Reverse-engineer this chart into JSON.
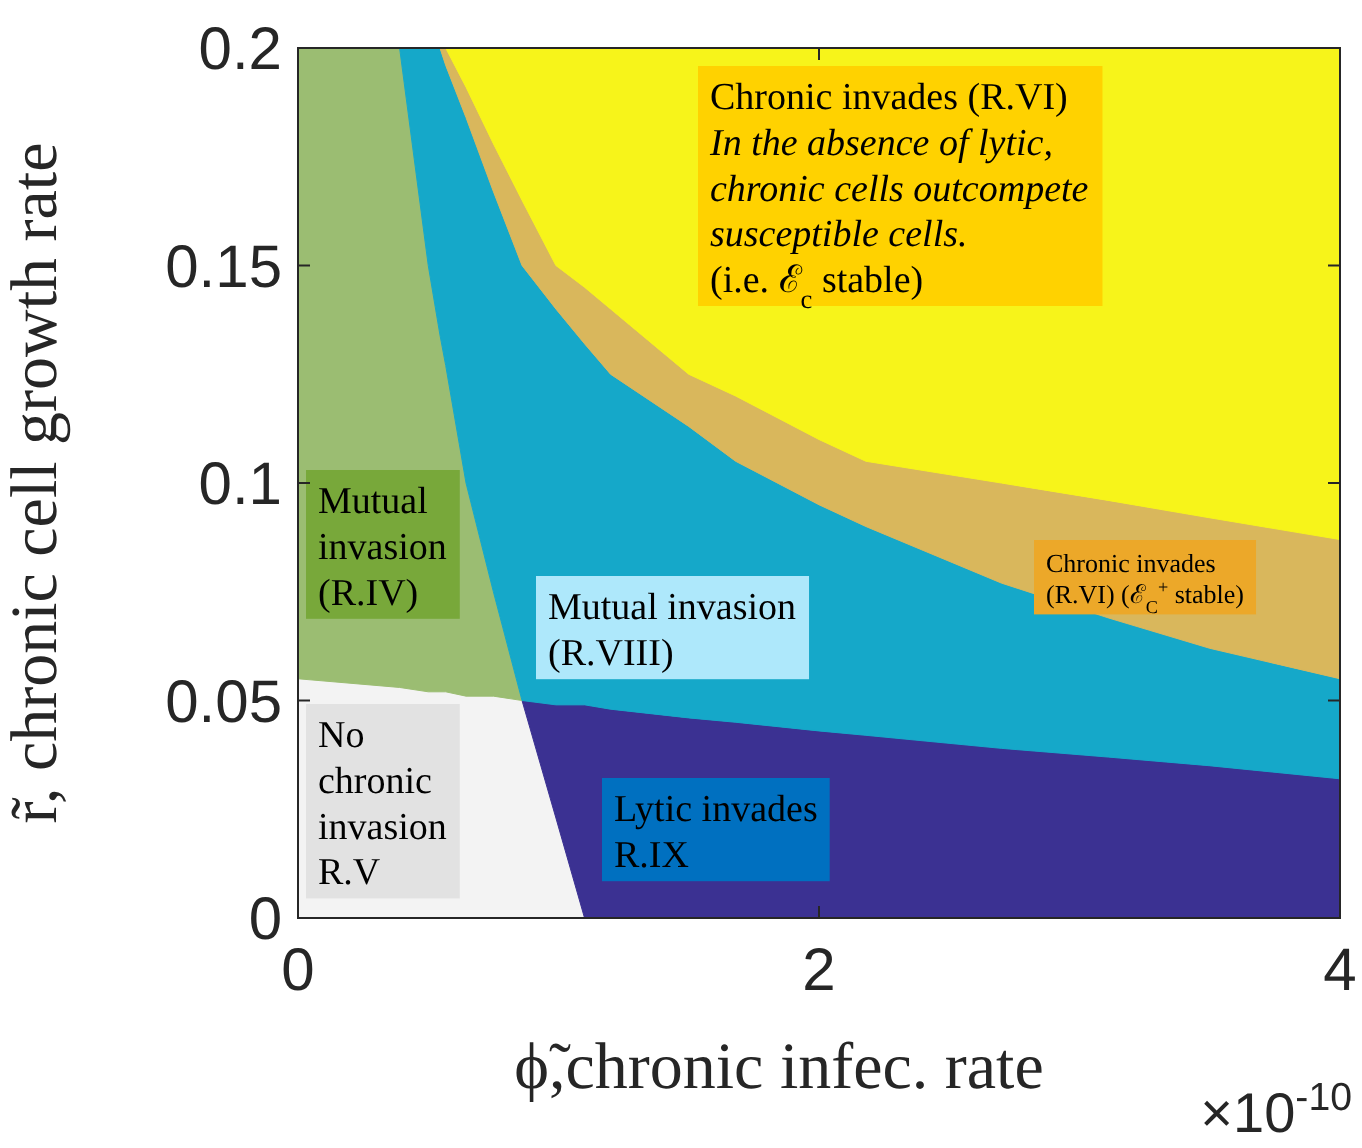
{
  "chart_data": {
    "type": "area",
    "stacked": true,
    "xlabel": "ϕ̃,chronic infec. rate",
    "ylabel": "r̃, chronic cell growth rate",
    "x": [
      0,
      0.39,
      0.5,
      0.545,
      0.567,
      0.645,
      0.75,
      0.86,
      0.99,
      1.1,
      1.2,
      1.5,
      1.68,
      2,
      2.18,
      2.7,
      3.11,
      3.5,
      4
    ],
    "xlim": [
      0,
      4
    ],
    "xticks": [
      0,
      2,
      4
    ],
    "ylim": [
      0,
      0.2
    ],
    "yticks": [
      0,
      0.05,
      0.1,
      0.15,
      0.2
    ],
    "grid": false,
    "series": [
      {
        "color": "#f3f3f3",
        "values": [
          0.055,
          0.053,
          0.052,
          0.052,
          0.052,
          0.051,
          0.051,
          0.05,
          0.023,
          0,
          null,
          null,
          null,
          null,
          null,
          null,
          null,
          null,
          null
        ]
      },
      {
        "color": "#3b3192",
        "values": [
          null,
          null,
          null,
          null,
          null,
          null,
          null,
          0,
          0.026,
          0.049,
          0.048,
          0.046,
          0.045,
          0.043,
          0.042,
          0.039,
          0.037,
          0.035,
          0.032
        ]
      },
      {
        "color": "#9bbd72",
        "values": [
          0.145,
          0.147,
          0.098,
          0.082,
          0.075,
          0.049,
          0.024,
          0,
          null,
          null,
          null,
          null,
          null,
          null,
          null,
          null,
          null,
          null,
          null
        ]
      },
      {
        "color": "#15a8c9",
        "values": [
          null,
          0,
          0.05,
          0.066,
          0.069,
          0.084,
          0.092,
          0.1,
          0.091,
          0.083,
          0.077,
          0.067,
          0.06,
          0.052,
          0.048,
          0.038,
          0.032,
          0.027,
          0.023
        ]
      },
      {
        "color": "#d9b75c",
        "values": [
          null,
          null,
          null,
          0,
          0.004,
          0.007,
          0.011,
          0.015,
          0.01,
          0.013,
          0.015,
          0.012,
          0.015,
          0.015,
          0.015,
          0.023,
          0.027,
          0.03,
          0.032
        ]
      },
      {
        "color": "#f7f41a",
        "values": [
          null,
          null,
          null,
          null,
          0,
          0.009,
          0.022,
          0.035,
          0.05,
          0.055,
          0.06,
          0.075,
          0.08,
          0.09,
          0.095,
          0.1,
          0.104,
          0.108,
          0.113
        ]
      }
    ],
    "annotations": [
      "Chronic invades (R.VI)\nIn the absence of lytic,\nchronic cells outcompete\nsusceptible cells.\n(i.e. ℰ$_{c}$ stable)",
      "Chronic invades\n(R.VI) (ℰ$_{C}$$^{+}$ stable)",
      "Mutual\ninvasion\n(R.IV)",
      "Mutual invasion\n(R.VIII)",
      "No\nchronic\ninvasion\nR.V",
      "Lytic invades\nR.IX",
      "×10$^{-10}$"
    ]
  }
}
